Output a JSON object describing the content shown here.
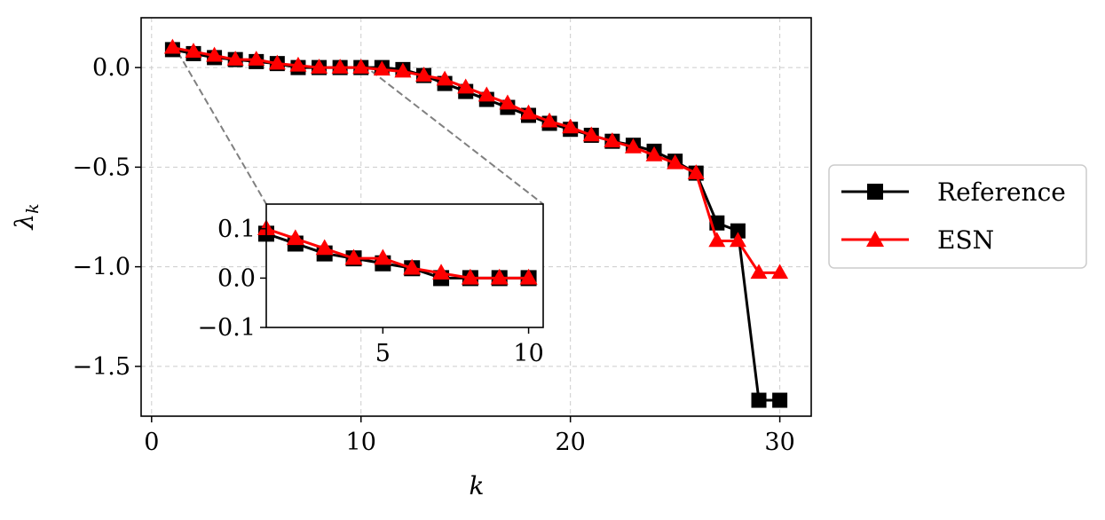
{
  "chart_data": {
    "type": "line",
    "title": "",
    "xlabel": "k",
    "ylabel": "λ",
    "ylabel_sub": "k",
    "xlim": [
      -0.5,
      31.5
    ],
    "ylim": [
      -1.75,
      0.25
    ],
    "xticks": [
      0,
      10,
      20,
      30
    ],
    "yticks": [
      0.0,
      -0.5,
      -1.0,
      -1.5
    ],
    "xtick_labels": [
      "0",
      "10",
      "20",
      "30"
    ],
    "ytick_labels": [
      "0.0",
      "−0.5",
      "−1.0",
      "−1.5"
    ],
    "grid": true,
    "legend_position": "right",
    "x": [
      1,
      2,
      3,
      4,
      5,
      6,
      7,
      8,
      9,
      10,
      11,
      12,
      13,
      14,
      15,
      16,
      17,
      18,
      19,
      20,
      21,
      22,
      23,
      24,
      25,
      26,
      27,
      28,
      29,
      30
    ],
    "series": [
      {
        "name": "Reference",
        "color": "#000000",
        "marker": "square",
        "values": [
          0.09,
          0.07,
          0.05,
          0.04,
          0.03,
          0.02,
          0.0,
          0.0,
          0.0,
          0.0,
          0.0,
          -0.01,
          -0.04,
          -0.08,
          -0.12,
          -0.16,
          -0.2,
          -0.24,
          -0.28,
          -0.31,
          -0.34,
          -0.37,
          -0.39,
          -0.42,
          -0.47,
          -0.53,
          -0.78,
          -0.82,
          -1.67,
          -1.67
        ]
      },
      {
        "name": "ESN",
        "color": "#ff0000",
        "marker": "triangle",
        "values": [
          0.1,
          0.08,
          0.06,
          0.04,
          0.04,
          0.02,
          0.01,
          0.0,
          0.0,
          0.0,
          -0.01,
          -0.02,
          -0.04,
          -0.06,
          -0.1,
          -0.14,
          -0.18,
          -0.23,
          -0.27,
          -0.3,
          -0.34,
          -0.37,
          -0.4,
          -0.44,
          -0.48,
          -0.53,
          -0.87,
          -0.87,
          -1.03,
          -1.03
        ]
      }
    ],
    "inset": {
      "xlim": [
        1,
        10.5
      ],
      "ylim": [
        -0.1,
        0.15
      ],
      "xticks": [
        5,
        10
      ],
      "yticks": [
        0.1,
        0.0,
        -0.1
      ],
      "xtick_labels": [
        "5",
        "10"
      ],
      "ytick_labels": [
        "0.1",
        "0.0",
        "−0.1"
      ],
      "grid": false
    }
  }
}
